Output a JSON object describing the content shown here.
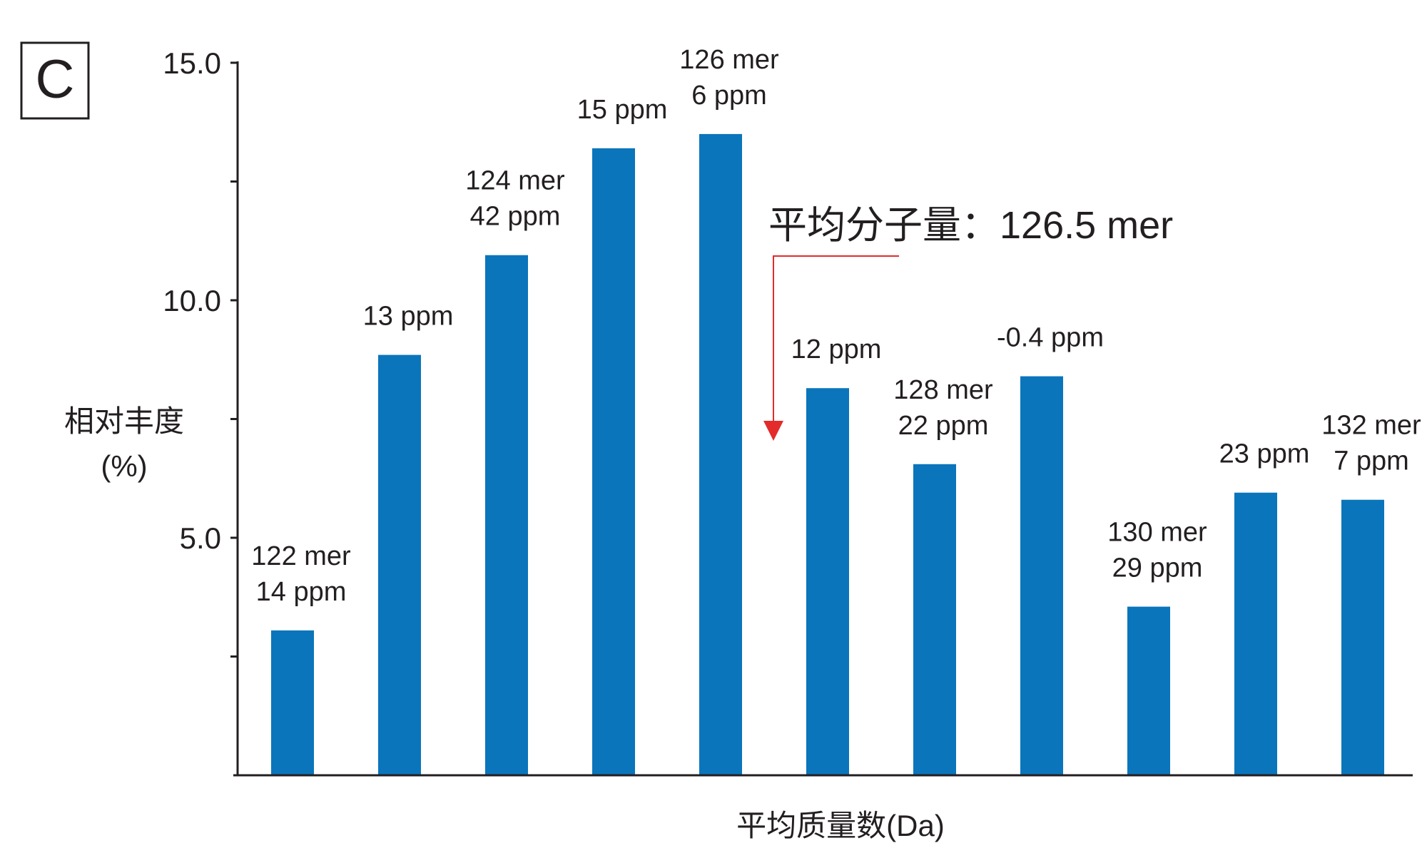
{
  "panel_label": "C",
  "annotation": {
    "text": "平均分子量：126.5 mer",
    "arrow_color": "#e32b2b"
  },
  "colors": {
    "bar": "#0a75bb",
    "axis": "#231f20"
  },
  "chart_data": {
    "type": "bar",
    "xlabel": "平均质量数(Da)",
    "ylabel": [
      "相对丰度",
      "(%)"
    ],
    "ylim": [
      0,
      15
    ],
    "yticks": [
      {
        "value": 5,
        "label": "5.0"
      },
      {
        "value": 10,
        "label": "10.0"
      },
      {
        "value": 15,
        "label": "15.0"
      }
    ],
    "minor_yticks": [
      2.5,
      7.5,
      12.5
    ],
    "grid": false,
    "categories": [
      "122 mer",
      "",
      "124 mer",
      "",
      "126 mer",
      "",
      "128 mer",
      "",
      "130 mer",
      "",
      "132 mer"
    ],
    "values": [
      3.05,
      8.85,
      10.95,
      13.2,
      13.5,
      8.15,
      6.55,
      8.4,
      3.55,
      5.95,
      5.8
    ],
    "bar_labels": [
      [
        "122 mer",
        "14 ppm"
      ],
      [
        "13 ppm"
      ],
      [
        "124 mer",
        "42 ppm"
      ],
      [
        "15 ppm"
      ],
      [
        "126 mer",
        "6 ppm"
      ],
      [
        "12 ppm"
      ],
      [
        "128 mer",
        "22 ppm"
      ],
      [
        "-0.4 ppm"
      ],
      [
        "130 mer",
        "29 ppm"
      ],
      [
        "23 ppm"
      ],
      [
        "132 mer",
        "7 ppm"
      ]
    ]
  }
}
